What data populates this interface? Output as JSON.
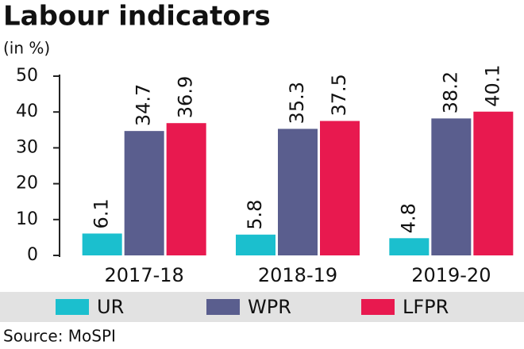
{
  "chart_data": {
    "type": "bar",
    "title": "Labour indicators",
    "subtitle": "(in %)",
    "categories": [
      "2017-18",
      "2018-19",
      "2019-20"
    ],
    "series": [
      {
        "name": "UR",
        "color": "#1bbfce",
        "values": [
          6.1,
          5.8,
          4.8
        ]
      },
      {
        "name": "WPR",
        "color": "#5a5e8e",
        "values": [
          34.7,
          35.3,
          38.2
        ]
      },
      {
        "name": "LFPR",
        "color": "#e8194f",
        "values": [
          36.9,
          37.5,
          40.1
        ]
      }
    ],
    "ylim": [
      0,
      50
    ],
    "yticks": [
      0,
      10,
      20,
      30,
      40,
      50
    ],
    "source": "Source: MoSPI"
  }
}
